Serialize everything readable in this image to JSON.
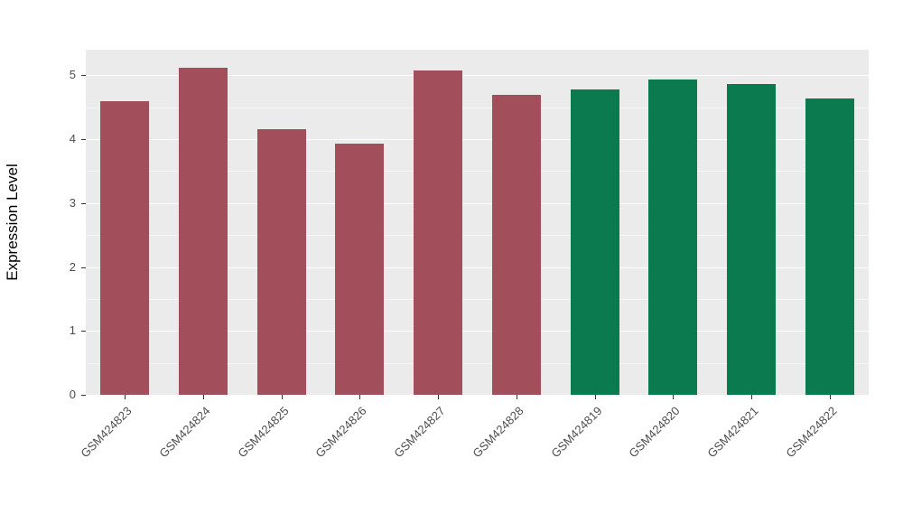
{
  "chart_data": {
    "type": "bar",
    "title": "",
    "xlabel": "",
    "ylabel": "Expression Level",
    "ylim": [
      0,
      5.4
    ],
    "yticks": [
      0,
      1,
      2,
      3,
      4,
      5
    ],
    "yticks_minor": [
      0.5,
      1.5,
      2.5,
      3.5,
      4.5
    ],
    "grid": true,
    "legend": "none",
    "categories": [
      "GSM424823",
      "GSM424824",
      "GSM424825",
      "GSM424826",
      "GSM424827",
      "GSM424828",
      "GSM424819",
      "GSM424820",
      "GSM424821",
      "GSM424822"
    ],
    "values": [
      4.59,
      5.12,
      4.16,
      3.93,
      5.08,
      4.69,
      4.78,
      4.93,
      4.87,
      4.63
    ],
    "bar_colors": [
      "#A24E5B",
      "#A24E5B",
      "#A24E5B",
      "#A24E5B",
      "#A24E5B",
      "#A24E5B",
      "#0B7B4F",
      "#0B7B4F",
      "#0B7B4F",
      "#0B7B4F"
    ],
    "colors": {
      "group1_red": "#A24E5B",
      "group2_green": "#0B7B4F",
      "panel_background": "#EBEBEB",
      "gridline": "#FFFFFF",
      "axis_text": "#4D4D4D",
      "axis_title": "#000000"
    }
  }
}
